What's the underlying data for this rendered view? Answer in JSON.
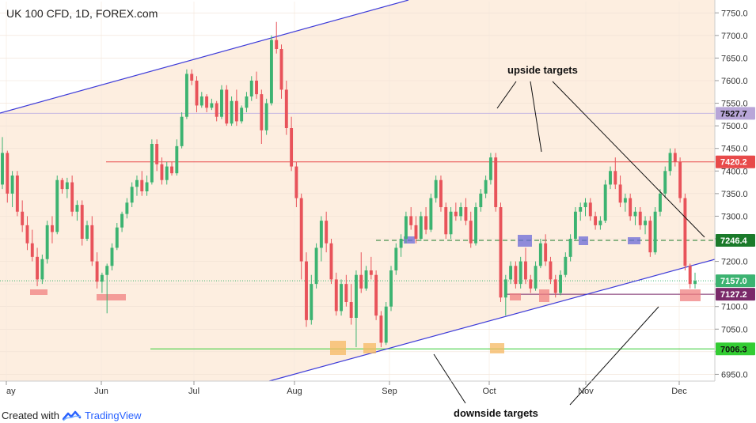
{
  "header": {
    "title": "UK 100 CFD, 1D, FOREX.com"
  },
  "footer": {
    "created_with": "Created with",
    "brand": "TradingView"
  },
  "colors": {
    "up": "#3cb371",
    "down": "#e8535a",
    "channel": "#3d3bd9",
    "resistance": "#e84a4a",
    "support": "#33cc33",
    "pivot": "#1a7a2a",
    "mid": "#7a2a6a",
    "band_bg": "#fdeee0",
    "upper_label": "#b8a6d8"
  },
  "chart_data": {
    "type": "candlestick",
    "title": "UK 100 CFD, 1D, FOREX.com",
    "ylim": [
      6935,
      7775
    ],
    "y_ticks": [
      6950,
      7000,
      7050,
      7100,
      7150,
      7200,
      7250,
      7300,
      7350,
      7400,
      7450,
      7500,
      7550,
      7600,
      7650,
      7700,
      7750
    ],
    "x_ticks": [
      "ay",
      "Jun",
      "Jul",
      "Aug",
      "Sep",
      "Oct",
      "Nov",
      "Dec"
    ],
    "price_labels": [
      {
        "value": 7527.7,
        "text": "7527.7",
        "role": "upper"
      },
      {
        "value": 7420.2,
        "text": "7420.2",
        "role": "resistance"
      },
      {
        "value": 7246.4,
        "text": "7246.4",
        "role": "pivot"
      },
      {
        "value": 7157.0,
        "text": "7157.0",
        "role": "last"
      },
      {
        "value": 7127.2,
        "text": "7127.2",
        "role": "mid"
      },
      {
        "value": 7006.3,
        "text": "7006.3",
        "role": "support"
      }
    ],
    "annotations": {
      "upside": "upside targets",
      "downside": "downside targets"
    },
    "candles": [
      [
        7370,
        7475,
        7360,
        7440
      ],
      [
        7440,
        7445,
        7330,
        7350
      ],
      [
        7350,
        7400,
        7320,
        7390
      ],
      [
        7390,
        7400,
        7300,
        7310
      ],
      [
        7310,
        7335,
        7265,
        7280
      ],
      [
        7280,
        7300,
        7225,
        7240
      ],
      [
        7240,
        7270,
        7200,
        7210
      ],
      [
        7210,
        7230,
        7145,
        7160
      ],
      [
        7160,
        7215,
        7150,
        7205
      ],
      [
        7205,
        7290,
        7195,
        7280
      ],
      [
        7280,
        7300,
        7240,
        7265
      ],
      [
        7265,
        7390,
        7260,
        7380
      ],
      [
        7380,
        7385,
        7350,
        7360
      ],
      [
        7360,
        7385,
        7340,
        7375
      ],
      [
        7375,
        7390,
        7300,
        7310
      ],
      [
        7310,
        7335,
        7290,
        7325
      ],
      [
        7325,
        7335,
        7235,
        7250
      ],
      [
        7250,
        7290,
        7245,
        7280
      ],
      [
        7280,
        7300,
        7190,
        7200
      ],
      [
        7200,
        7220,
        7140,
        7155
      ],
      [
        7155,
        7175,
        7130,
        7170
      ],
      [
        7170,
        7195,
        7085,
        7190
      ],
      [
        7190,
        7240,
        7180,
        7230
      ],
      [
        7230,
        7285,
        7225,
        7275
      ],
      [
        7275,
        7310,
        7265,
        7305
      ],
      [
        7305,
        7340,
        7295,
        7330
      ],
      [
        7330,
        7375,
        7320,
        7365
      ],
      [
        7365,
        7390,
        7345,
        7380
      ],
      [
        7380,
        7400,
        7345,
        7355
      ],
      [
        7355,
        7390,
        7345,
        7375
      ],
      [
        7375,
        7470,
        7370,
        7460
      ],
      [
        7460,
        7470,
        7400,
        7415
      ],
      [
        7415,
        7430,
        7370,
        7380
      ],
      [
        7380,
        7420,
        7370,
        7410
      ],
      [
        7410,
        7420,
        7390,
        7395
      ],
      [
        7395,
        7470,
        7390,
        7455
      ],
      [
        7455,
        7530,
        7450,
        7520
      ],
      [
        7520,
        7625,
        7515,
        7615
      ],
      [
        7615,
        7625,
        7590,
        7600
      ],
      [
        7600,
        7610,
        7530,
        7545
      ],
      [
        7545,
        7575,
        7540,
        7565
      ],
      [
        7565,
        7570,
        7530,
        7540
      ],
      [
        7540,
        7560,
        7535,
        7550
      ],
      [
        7550,
        7555,
        7510,
        7520
      ],
      [
        7520,
        7590,
        7515,
        7580
      ],
      [
        7580,
        7590,
        7500,
        7505
      ],
      [
        7505,
        7565,
        7500,
        7555
      ],
      [
        7555,
        7580,
        7500,
        7510
      ],
      [
        7510,
        7545,
        7505,
        7540
      ],
      [
        7540,
        7575,
        7530,
        7565
      ],
      [
        7565,
        7610,
        7555,
        7600
      ],
      [
        7600,
        7620,
        7560,
        7570
      ],
      [
        7570,
        7580,
        7460,
        7490
      ],
      [
        7490,
        7560,
        7480,
        7550
      ],
      [
        7550,
        7700,
        7545,
        7690
      ],
      [
        7690,
        7730,
        7660,
        7670
      ],
      [
        7670,
        7680,
        7560,
        7580
      ],
      [
        7580,
        7600,
        7480,
        7495
      ],
      [
        7495,
        7520,
        7400,
        7410
      ],
      [
        7410,
        7420,
        7320,
        7340
      ],
      [
        7340,
        7350,
        7160,
        7200
      ],
      [
        7200,
        7220,
        7055,
        7070
      ],
      [
        7070,
        7170,
        7060,
        7150
      ],
      [
        7150,
        7240,
        7140,
        7230
      ],
      [
        7230,
        7300,
        7200,
        7290
      ],
      [
        7290,
        7310,
        7220,
        7240
      ],
      [
        7240,
        7250,
        7150,
        7160
      ],
      [
        7160,
        7175,
        7080,
        7090
      ],
      [
        7090,
        7160,
        7080,
        7150
      ],
      [
        7150,
        7170,
        7100,
        7110
      ],
      [
        7110,
        7150,
        7060,
        7075
      ],
      [
        7075,
        7180,
        7010,
        7170
      ],
      [
        7170,
        7220,
        7130,
        7140
      ],
      [
        7140,
        7190,
        7135,
        7180
      ],
      [
        7180,
        7210,
        7160,
        7170
      ],
      [
        7170,
        7180,
        7070,
        7080
      ],
      [
        7080,
        7090,
        7010,
        7020
      ],
      [
        7020,
        7110,
        7015,
        7100
      ],
      [
        7100,
        7190,
        7090,
        7180
      ],
      [
        7180,
        7240,
        7170,
        7230
      ],
      [
        7230,
        7260,
        7210,
        7250
      ],
      [
        7250,
        7310,
        7240,
        7300
      ],
      [
        7300,
        7320,
        7270,
        7280
      ],
      [
        7280,
        7300,
        7240,
        7250
      ],
      [
        7250,
        7310,
        7245,
        7300
      ],
      [
        7300,
        7320,
        7260,
        7270
      ],
      [
        7270,
        7350,
        7265,
        7340
      ],
      [
        7340,
        7390,
        7330,
        7380
      ],
      [
        7380,
        7390,
        7310,
        7320
      ],
      [
        7320,
        7330,
        7250,
        7260
      ],
      [
        7260,
        7320,
        7250,
        7310
      ],
      [
        7310,
        7330,
        7290,
        7300
      ],
      [
        7300,
        7330,
        7290,
        7320
      ],
      [
        7320,
        7340,
        7280,
        7290
      ],
      [
        7290,
        7310,
        7230,
        7240
      ],
      [
        7240,
        7330,
        7235,
        7320
      ],
      [
        7320,
        7360,
        7310,
        7350
      ],
      [
        7350,
        7390,
        7340,
        7380
      ],
      [
        7380,
        7440,
        7370,
        7430
      ],
      [
        7430,
        7440,
        7310,
        7320
      ],
      [
        7320,
        7330,
        7110,
        7120
      ],
      [
        7120,
        7170,
        7080,
        7160
      ],
      [
        7160,
        7200,
        7150,
        7190
      ],
      [
        7190,
        7200,
        7140,
        7150
      ],
      [
        7150,
        7210,
        7140,
        7200
      ],
      [
        7200,
        7230,
        7150,
        7160
      ],
      [
        7160,
        7170,
        7130,
        7140
      ],
      [
        7140,
        7200,
        7135,
        7190
      ],
      [
        7190,
        7250,
        7185,
        7240
      ],
      [
        7240,
        7260,
        7190,
        7200
      ],
      [
        7200,
        7210,
        7150,
        7160
      ],
      [
        7160,
        7170,
        7120,
        7130
      ],
      [
        7130,
        7180,
        7125,
        7170
      ],
      [
        7170,
        7220,
        7165,
        7210
      ],
      [
        7210,
        7260,
        7200,
        7250
      ],
      [
        7250,
        7320,
        7245,
        7310
      ],
      [
        7310,
        7330,
        7290,
        7320
      ],
      [
        7320,
        7340,
        7300,
        7330
      ],
      [
        7330,
        7340,
        7290,
        7300
      ],
      [
        7300,
        7310,
        7270,
        7280
      ],
      [
        7280,
        7300,
        7270,
        7290
      ],
      [
        7290,
        7380,
        7285,
        7370
      ],
      [
        7370,
        7410,
        7360,
        7400
      ],
      [
        7400,
        7430,
        7360,
        7370
      ],
      [
        7370,
        7390,
        7320,
        7330
      ],
      [
        7330,
        7350,
        7310,
        7340
      ],
      [
        7340,
        7350,
        7290,
        7300
      ],
      [
        7300,
        7320,
        7280,
        7310
      ],
      [
        7310,
        7320,
        7270,
        7280
      ],
      [
        7280,
        7300,
        7260,
        7290
      ],
      [
        7290,
        7300,
        7210,
        7220
      ],
      [
        7220,
        7320,
        7215,
        7310
      ],
      [
        7310,
        7360,
        7300,
        7350
      ],
      [
        7350,
        7410,
        7340,
        7400
      ],
      [
        7400,
        7450,
        7390,
        7440
      ],
      [
        7440,
        7450,
        7410,
        7420
      ],
      [
        7420,
        7430,
        7330,
        7340
      ],
      [
        7340,
        7350,
        7180,
        7190
      ],
      [
        7190,
        7195,
        7140,
        7150
      ],
      [
        7150,
        7175,
        7140,
        7157
      ]
    ]
  }
}
